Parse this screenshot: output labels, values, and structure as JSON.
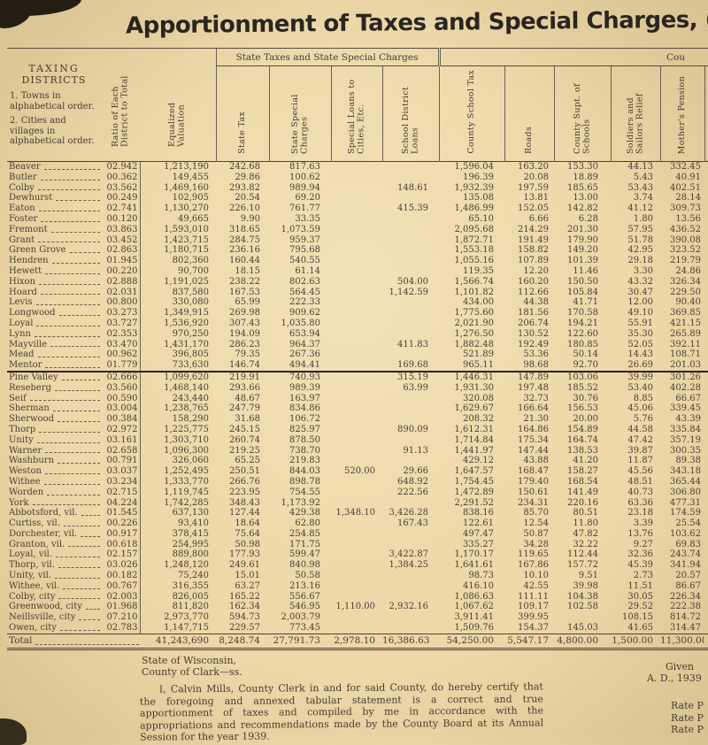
{
  "page": {
    "title": "Apportionment of Taxes and Special Charges, (",
    "paper_color": "#ecd8a8",
    "ink_color": "#4a4036",
    "rule_color": "#564b3c"
  },
  "table": {
    "group_headers": {
      "state": "State Taxes and State Special Charges",
      "county_partial": "Cou"
    },
    "district_header": {
      "line1": "TAXING",
      "line2": "DISTRICTS",
      "note1": "1. Towns in alphabetical order.",
      "note2": "2. Cities and villages in alphabetical order."
    },
    "column_headers": [
      "Ratio of Each District to Total",
      "Equalized Valuation",
      "State Tax",
      "State Special Charges",
      "Special Loans to Cities, Etc.",
      "School District Loans",
      "County School Tax",
      "Roads",
      "County Supt. of Schools",
      "Soldiers and Sailors Relief",
      "Mother's Pension"
    ],
    "divider_after": "Mentor",
    "rows": [
      [
        "Beaver",
        "02.942",
        "1,213,190",
        "242.68",
        "817.63",
        "",
        "",
        "1,596.04",
        "163.20",
        "153.30",
        "44.13",
        "332.45"
      ],
      [
        "Butler",
        "00.362",
        "149,455",
        "29.86",
        "100.62",
        "",
        "",
        "196.39",
        "20.08",
        "18.89",
        "5.43",
        "40.91"
      ],
      [
        "Colby",
        "03.562",
        "1,469,160",
        "293.82",
        "989.94",
        "",
        "148.61",
        "1,932.39",
        "197.59",
        "185.65",
        "53.43",
        "402.51"
      ],
      [
        "Dewhurst",
        "00.249",
        "102,905",
        "20.54",
        "69.20",
        "",
        "",
        "135.08",
        "13.81",
        "13.00",
        "3.74",
        "28.14"
      ],
      [
        "Eaton",
        "02.741",
        "1,130,270",
        "226.10",
        "761.77",
        "",
        "415.39",
        "1,486.99",
        "152.05",
        "142.82",
        "41.12",
        "309.73"
      ],
      [
        "Foster",
        "00.120",
        "49,665",
        "9.90",
        "33.35",
        "",
        "",
        "65.10",
        "6.66",
        "6.28",
        "1.80",
        "13.56"
      ],
      [
        "Fremont",
        "03.863",
        "1,593,010",
        "318.65",
        "1,073.59",
        "",
        "",
        "2,095.68",
        "214.29",
        "201.30",
        "57.95",
        "436.52"
      ],
      [
        "Grant",
        "03.452",
        "1,423,715",
        "284.75",
        "959.37",
        "",
        "",
        "1,872.71",
        "191.49",
        "179.90",
        "51.78",
        "390.08"
      ],
      [
        "Green Grove",
        "02.863",
        "1,180,715",
        "236.16",
        "795.68",
        "",
        "",
        "1,553.18",
        "158.82",
        "149.20",
        "42.95",
        "323.52"
      ],
      [
        "Hendren",
        "01.945",
        "802,360",
        "160.44",
        "540.55",
        "",
        "",
        "1,055.16",
        "107.89",
        "101.39",
        "29.18",
        "219.79"
      ],
      [
        "Hewett",
        "00.220",
        "90,700",
        "18.15",
        "61.14",
        "",
        "",
        "119.35",
        "12.20",
        "11.46",
        "3.30",
        "24.86"
      ],
      [
        "Hixon",
        "02.888",
        "1,191,025",
        "238.22",
        "802.63",
        "",
        "504.00",
        "1,566.74",
        "160.20",
        "150.50",
        "43.32",
        "326.34"
      ],
      [
        "Hoard",
        "02.031",
        "837,580",
        "167.53",
        "564.45",
        "",
        "1,142.59",
        "1,101.82",
        "112.66",
        "105.84",
        "30.47",
        "229.50"
      ],
      [
        "Levis",
        "00.800",
        "330,080",
        "65.99",
        "222.33",
        "",
        "",
        "434.00",
        "44.38",
        "41.71",
        "12.00",
        "90.40"
      ],
      [
        "Longwood",
        "03.273",
        "1,349,915",
        "269.98",
        "909.62",
        "",
        "",
        "1,775.60",
        "181.56",
        "170.58",
        "49.10",
        "369.85"
      ],
      [
        "Loyal",
        "03.727",
        "1,536,920",
        "307.43",
        "1,035.80",
        "",
        "",
        "2,021.90",
        "206.74",
        "194.21",
        "55.91",
        "421.15"
      ],
      [
        "Lynn",
        "02.353",
        "970,250",
        "194.09",
        "653.94",
        "",
        "",
        "1,276.50",
        "130.52",
        "122.60",
        "35.30",
        "265.89"
      ],
      [
        "Mayville",
        "03.470",
        "1,431,170",
        "286.23",
        "964.37",
        "",
        "411.83",
        "1,882.48",
        "192.49",
        "180.85",
        "52.05",
        "392.11"
      ],
      [
        "Mead",
        "00.962",
        "396,805",
        "79.35",
        "267.36",
        "",
        "",
        "521.89",
        "53.36",
        "50.14",
        "14.43",
        "108.71"
      ],
      [
        "Mentor",
        "01.779",
        "733,630",
        "146.74",
        "494.41",
        "",
        "169.68",
        "965.11",
        "98.68",
        "92.70",
        "26.69",
        "201.03"
      ],
      [
        "Pine Valley",
        "02.666",
        "1,099,620",
        "219.91",
        "740.93",
        "",
        "315.19",
        "1,446.31",
        "147.89",
        "103.06",
        "39.99",
        "301.26"
      ],
      [
        "Reseberg",
        "03.560",
        "1,468,140",
        "293.66",
        "989.39",
        "",
        "63.99",
        "1,931.30",
        "197.48",
        "185.52",
        "53.40",
        "402.28"
      ],
      [
        "Seif",
        "00.590",
        "243,440",
        "48.67",
        "163.97",
        "",
        "",
        "320.08",
        "32.73",
        "30.76",
        "8.85",
        "66.67"
      ],
      [
        "Sherman",
        "03.004",
        "1,238,765",
        "247.79",
        "834.86",
        "",
        "",
        "1,629.67",
        "166.64",
        "156.53",
        "45.06",
        "339.45"
      ],
      [
        "Sherwood",
        "00.384",
        "158,290",
        "31.68",
        "106.72",
        "",
        "",
        "208.32",
        "21.30",
        "20.00",
        "5.76",
        "43.39"
      ],
      [
        "Thorp",
        "02.972",
        "1,225,775",
        "245.15",
        "825.97",
        "",
        "890.09",
        "1,612.31",
        "164.86",
        "154.89",
        "44.58",
        "335.84"
      ],
      [
        "Unity",
        "03.161",
        "1,303,710",
        "260.74",
        "878.50",
        "",
        "",
        "1,714.84",
        "175.34",
        "164.74",
        "47.42",
        "357.19"
      ],
      [
        "Warner",
        "02.658",
        "1,096,300",
        "219.25",
        "738.70",
        "",
        "91.13",
        "1,441.97",
        "147.44",
        "138.53",
        "39.87",
        "300.35"
      ],
      [
        "Washburn",
        "00.791",
        "326,060",
        "65.25",
        "219.83",
        "",
        "",
        "429.12",
        "43.88",
        "41.20",
        "11.87",
        "89.38"
      ],
      [
        "Weston",
        "03.037",
        "1,252,495",
        "250.51",
        "844.03",
        "520.00",
        "29.66",
        "1,647.57",
        "168.47",
        "158.27",
        "45.56",
        "343.18"
      ],
      [
        "Withee",
        "03.234",
        "1,333,770",
        "266.76",
        "898.78",
        "",
        "648.92",
        "1,754.45",
        "179.40",
        "168.54",
        "48.51",
        "365.44"
      ],
      [
        "Worden",
        "02.715",
        "1,119,745",
        "223.95",
        "754.55",
        "",
        "222.56",
        "1,472.89",
        "150.61",
        "141.49",
        "40.73",
        "306.80"
      ],
      [
        "York",
        "04.224",
        "1,742,285",
        "348.43",
        "1,173.92",
        "",
        "",
        "2,291.52",
        "234.31",
        "220.16",
        "63.36",
        "477.31"
      ],
      [
        "Abbotsford, vil.",
        "01.545",
        "637,130",
        "127.44",
        "429.38",
        "1,348.10",
        "3,426.28",
        "838.16",
        "85.70",
        "80.51",
        "23.18",
        "174.59"
      ],
      [
        "Curtiss, vil.",
        "00.226",
        "93,410",
        "18.64",
        "62.80",
        "",
        "167.43",
        "122.61",
        "12.54",
        "11.80",
        "3.39",
        "25.54"
      ],
      [
        "Dorchester, vil.",
        "00.917",
        "378,415",
        "75.64",
        "254.85",
        "",
        "",
        "497.47",
        "50.87",
        "47.82",
        "13.76",
        "103.62"
      ],
      [
        "Granton, vil.",
        "00.618",
        "254,995",
        "50.98",
        "171.75",
        "",
        "",
        "335.27",
        "34.28",
        "32.22",
        "9.27",
        "69.83"
      ],
      [
        "Loyal, vil.",
        "02.157",
        "889,800",
        "177.93",
        "599.47",
        "",
        "3,422.87",
        "1,170.17",
        "119.65",
        "112.44",
        "32.36",
        "243.74"
      ],
      [
        "Thorp, vil.",
        "03.026",
        "1,248,120",
        "249.61",
        "840.98",
        "",
        "1,384.25",
        "1,641.61",
        "167.86",
        "157.72",
        "45.39",
        "341.94"
      ],
      [
        "Unity, vil.",
        "00.182",
        "75,240",
        "15.01",
        "50.58",
        "",
        "",
        "98.73",
        "10.10",
        "9.51",
        "2.73",
        "20.57"
      ],
      [
        "Withee, vil.",
        "00.767",
        "316,355",
        "63.27",
        "213.16",
        "",
        "",
        "416.10",
        "42.55",
        "39.98",
        "11.51",
        "86.67"
      ],
      [
        "Colby, city",
        "02.003",
        "826,005",
        "165.22",
        "556.67",
        "",
        "",
        "1,086.63",
        "111.11",
        "104.38",
        "30.05",
        "226.34"
      ],
      [
        "Greenwood, city",
        "01.968",
        "811,820",
        "162.34",
        "546.95",
        "1,110.00",
        "2,932.16",
        "1,067.62",
        "109.17",
        "102.58",
        "29.52",
        "222.38"
      ],
      [
        "Neillsville, city",
        "07.210",
        "2,973,770",
        "594.73",
        "2,003.79",
        "",
        "",
        "3,911.41",
        "399.95",
        "",
        "108.15",
        "814.72"
      ],
      [
        "Owen, city",
        "02.783",
        "1,147,715",
        "229.57",
        "773.45",
        "",
        "",
        "1,509.76",
        "154.37",
        "145.03",
        "41.65",
        "314.47"
      ]
    ],
    "total_row": {
      "label": "Total",
      "values": [
        "41,243,690",
        "8,248.74",
        "27,791.73",
        "2,978.10",
        "16,386.63",
        "54,250.00",
        "5,547.17",
        "4,800.00",
        "1,500.00",
        "11,300.00"
      ],
      "overflow": "1"
    }
  },
  "footer": {
    "state_line": "State of Wisconsin,",
    "county_line": "County of Clark—ss.",
    "certification": "I, Calvin Mills, County Clerk in and for said County, do hereby certify that the foregoing and annexed tabular statement is a correct and true apportionment of taxes and compiled by me in accordance with the appropriations and recommendations made by the County Board at its Annual Session for the year 1939.",
    "given_label": "Given",
    "date_line": "A. D., 1939",
    "rate_lines": [
      "Rate P",
      "Rate P",
      "Rate P"
    ]
  }
}
